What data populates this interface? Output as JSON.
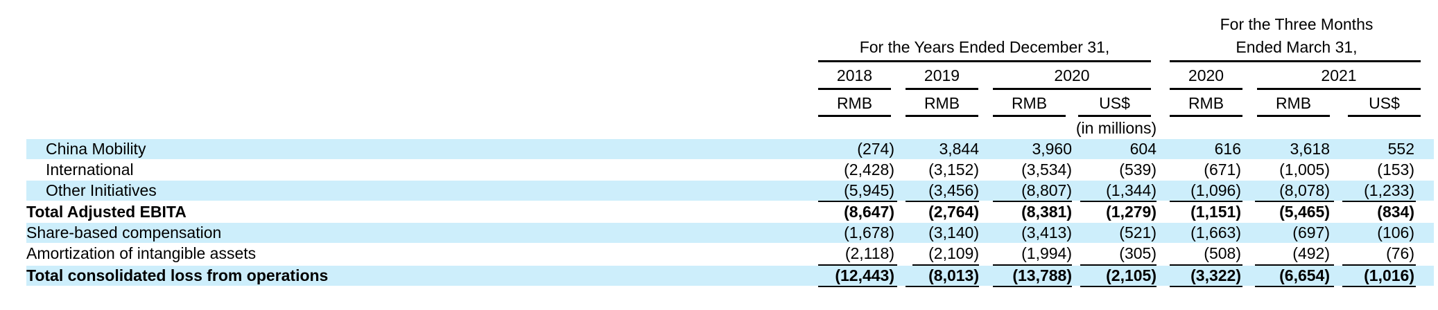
{
  "header": {
    "group_years": "For the Years Ended December 31,",
    "group_three_months_line1": "For the Three Months",
    "group_three_months_line2": "Ended March 31,",
    "years": [
      "2018",
      "2019",
      "2020",
      "2020",
      "2021"
    ],
    "currencies": [
      "RMB",
      "RMB",
      "RMB",
      "US$",
      "RMB",
      "RMB",
      "US$"
    ],
    "unit_note": "(in millions)"
  },
  "rows": [
    {
      "label": "China Mobility",
      "values": [
        "(274)",
        "3,844",
        "3,960",
        "604",
        "616",
        "3,618",
        "552"
      ]
    },
    {
      "label": "International",
      "values": [
        "(2,428)",
        "(3,152)",
        "(3,534)",
        "(539)",
        "(671)",
        "(1,005)",
        "(153)"
      ]
    },
    {
      "label": "Other Initiatives",
      "values": [
        "(5,945)",
        "(3,456)",
        "(8,807)",
        "(1,344)",
        "(1,096)",
        "(8,078)",
        "(1,233)"
      ]
    },
    {
      "label": "Total Adjusted EBITA",
      "values": [
        "(8,647)",
        "(2,764)",
        "(8,381)",
        "(1,279)",
        "(1,151)",
        "(5,465)",
        "(834)"
      ]
    },
    {
      "label": "Share-based compensation",
      "values": [
        "(1,678)",
        "(3,140)",
        "(3,413)",
        "(521)",
        "(1,663)",
        "(697)",
        "(106)"
      ]
    },
    {
      "label": "Amortization of intangible assets",
      "values": [
        "(2,118)",
        "(2,109)",
        "(1,994)",
        "(305)",
        "(508)",
        "(492)",
        "(76)"
      ]
    },
    {
      "label": "Total consolidated loss from operations",
      "values": [
        "(12,443)",
        "(8,013)",
        "(13,788)",
        "(2,105)",
        "(3,322)",
        "(6,654)",
        "(1,016)"
      ]
    }
  ]
}
